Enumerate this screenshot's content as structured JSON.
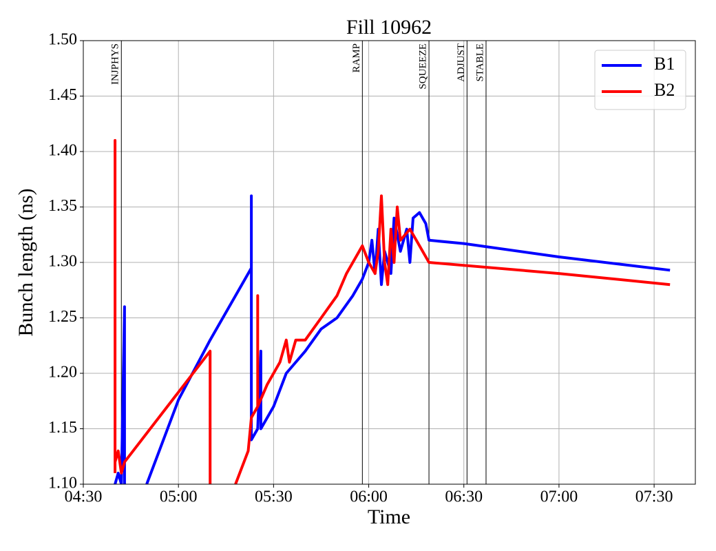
{
  "chart_data": {
    "type": "line",
    "title": "Fill 10962",
    "xlabel": "Time",
    "ylabel": "Bunch length (ns)",
    "xlim": [
      "04:30",
      "07:43"
    ],
    "xticks": [
      "04:30",
      "05:00",
      "05:30",
      "06:00",
      "06:30",
      "07:00",
      "07:30"
    ],
    "ylim": [
      1.1,
      1.5
    ],
    "yticks": [
      {
        "value": 1.1,
        "label": "1.10"
      },
      1.15,
      {
        "value": 1.2,
        "label": "1.20"
      },
      1.25,
      {
        "value": 1.3,
        "label": "1.30"
      },
      1.35,
      {
        "value": 1.4,
        "label": "1.40"
      },
      1.45,
      {
        "value": 1.5,
        "label": "1.50"
      }
    ],
    "grid": true,
    "legend": "upper right",
    "events": [
      {
        "label": "INJPHYS",
        "x": "04:42"
      },
      {
        "label": "RAMP",
        "x": "05:58"
      },
      {
        "label": "SQUEEZE",
        "x": "06:19"
      },
      {
        "label": "ADJUST",
        "x": "06:31"
      },
      {
        "label": "STABLE",
        "x": "06:37"
      }
    ],
    "series": [
      {
        "name": "B1",
        "color": "#0000ff",
        "x": [
          "04:40",
          "04:41",
          "04:42",
          "04:43",
          "04:43",
          null,
          "04:50",
          "05:00",
          "05:10",
          "05:20",
          "05:23",
          "05:23",
          "05:23",
          "05:25",
          "05:26",
          "05:26",
          "05:30",
          "05:34",
          "05:40",
          "05:45",
          "05:50",
          "05:55",
          "05:58",
          "06:00",
          "06:01",
          "06:02",
          "06:03",
          "06:04",
          "06:05",
          "06:07",
          "06:08",
          "06:10",
          "06:12",
          "06:13",
          "06:14",
          "06:16",
          "06:18",
          "06:19",
          "06:30",
          "07:00",
          "07:35"
        ],
        "values": [
          1.1,
          1.11,
          1.1,
          1.26,
          1.1,
          null,
          1.1,
          1.176,
          1.23,
          1.28,
          1.295,
          1.36,
          1.14,
          1.15,
          1.22,
          1.15,
          1.17,
          1.2,
          1.22,
          1.24,
          1.25,
          1.27,
          1.285,
          1.3,
          1.32,
          1.29,
          1.33,
          1.28,
          1.31,
          1.29,
          1.34,
          1.31,
          1.33,
          1.3,
          1.34,
          1.345,
          1.335,
          1.32,
          1.317,
          1.305,
          1.293
        ]
      },
      {
        "name": "B2",
        "color": "#ff0000",
        "x": [
          "04:40",
          "04:40",
          "04:40",
          "04:41",
          "04:42",
          "04:43",
          "05:10",
          "05:10",
          null,
          "05:18",
          "05:22",
          "05:23",
          "05:25",
          "05:25",
          "05:25",
          "05:28",
          "05:32",
          "05:34",
          "05:35",
          "05:37",
          "05:40",
          "05:45",
          "05:50",
          "05:53",
          "05:58",
          "06:00",
          "06:02",
          "06:03",
          "06:04",
          "06:05",
          "06:06",
          "06:07",
          "06:08",
          "06:09",
          "06:10",
          "06:13",
          "06:15",
          "06:17",
          "06:19",
          "07:00",
          "07:35"
        ],
        "values": [
          1.11,
          1.41,
          1.12,
          1.13,
          1.11,
          1.12,
          1.22,
          1.1,
          null,
          1.1,
          1.13,
          1.16,
          1.17,
          1.27,
          1.17,
          1.19,
          1.21,
          1.23,
          1.21,
          1.23,
          1.23,
          1.25,
          1.27,
          1.29,
          1.315,
          1.3,
          1.29,
          1.31,
          1.36,
          1.3,
          1.28,
          1.33,
          1.3,
          1.35,
          1.32,
          1.33,
          1.32,
          1.31,
          1.3,
          1.29,
          1.28
        ]
      }
    ]
  }
}
